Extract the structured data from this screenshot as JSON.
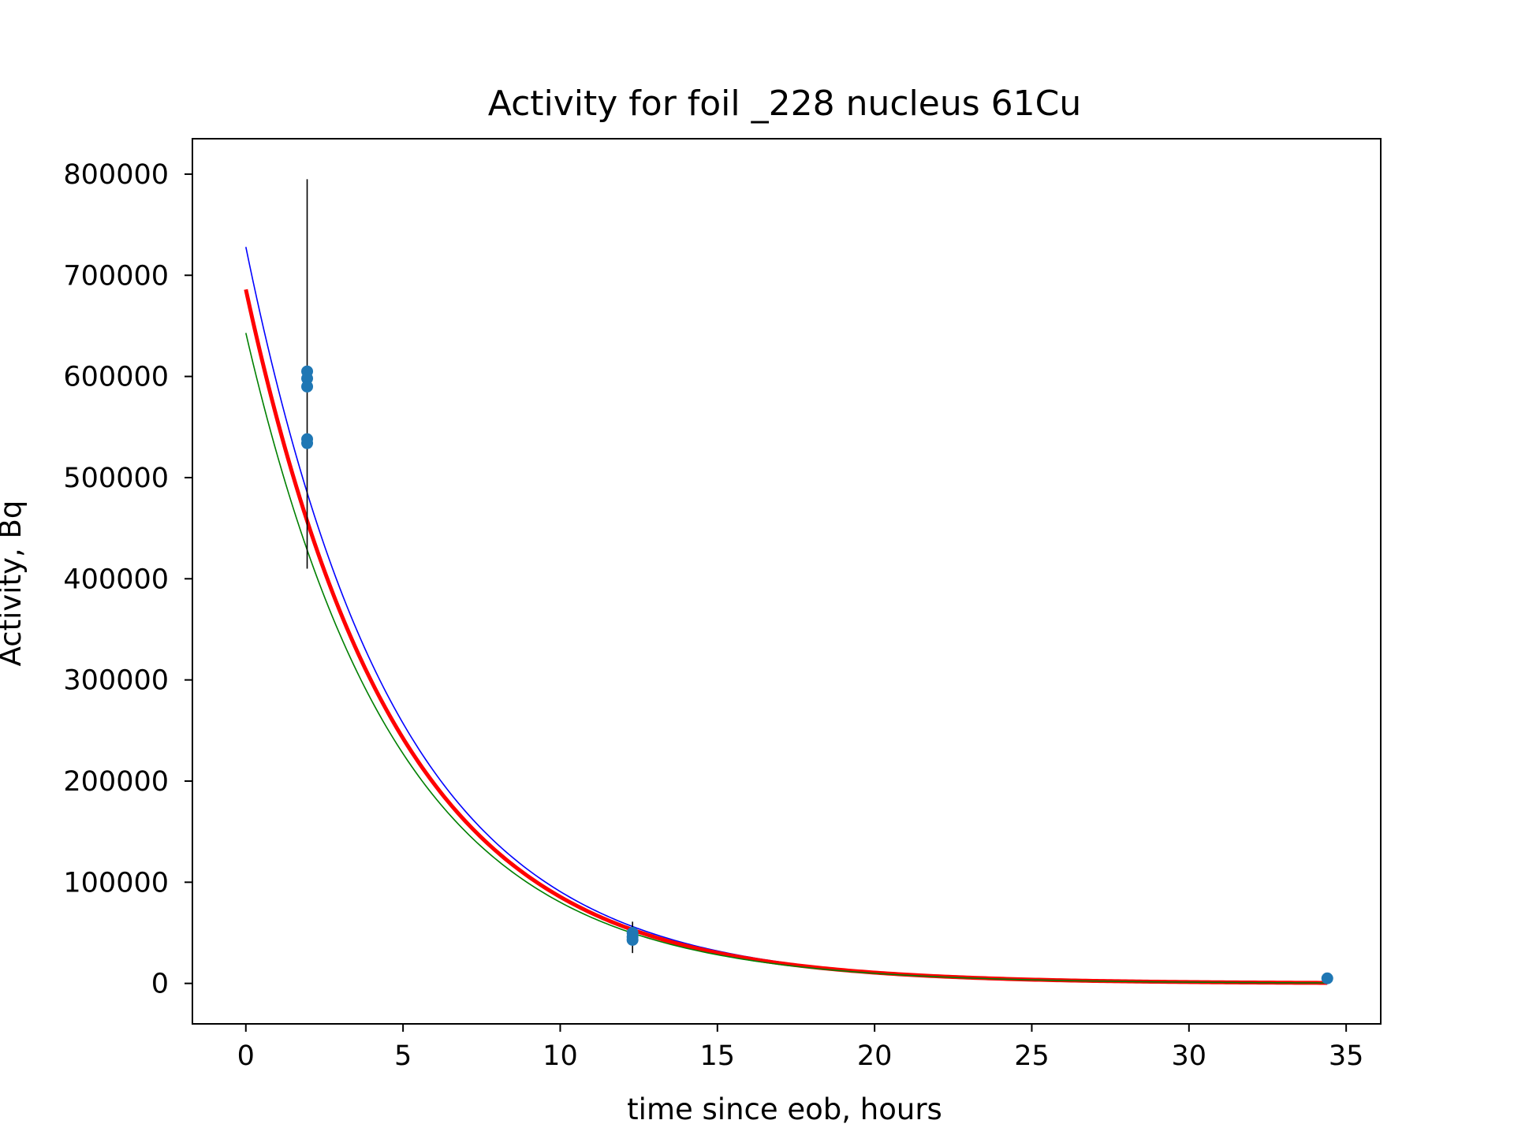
{
  "chart_data": {
    "type": "scatter",
    "title": "Activity for foil _228 nucleus 61Cu",
    "xlabel": "time since eob, hours",
    "ylabel": "Activity, Bq",
    "xlim": [
      -1.7,
      36.1
    ],
    "ylim": [
      -40000,
      835000
    ],
    "x_ticks": [
      0,
      5,
      10,
      15,
      20,
      25,
      30,
      35
    ],
    "y_ticks": [
      0,
      100000,
      200000,
      300000,
      400000,
      500000,
      600000,
      700000,
      800000
    ],
    "x_tick_labels": [
      "0",
      "5",
      "10",
      "15",
      "20",
      "25",
      "30",
      "35"
    ],
    "y_tick_labels": [
      "0",
      "100000",
      "200000",
      "300000",
      "400000",
      "500000",
      "600000",
      "700000",
      "800000"
    ],
    "grid": false,
    "legend": "none",
    "points": [
      {
        "x": 1.95,
        "y": 605000
      },
      {
        "x": 1.95,
        "y": 598000
      },
      {
        "x": 1.95,
        "y": 590000
      },
      {
        "x": 1.95,
        "y": 538000
      },
      {
        "x": 1.95,
        "y": 534000
      },
      {
        "x": 12.3,
        "y": 50000
      },
      {
        "x": 12.3,
        "y": 46000
      },
      {
        "x": 12.3,
        "y": 43000
      },
      {
        "x": 34.4,
        "y": 5000
      }
    ],
    "error_bars": [
      {
        "x": 1.95,
        "y_low": 410000,
        "y_high": 795000
      },
      {
        "x": 12.3,
        "y_low": 30000,
        "y_high": 61000
      }
    ],
    "fit_curves": [
      {
        "role": "upper",
        "color": "#0000ff",
        "A0": 728000,
        "x_start": 0,
        "x_end": 34.4
      },
      {
        "role": "fit",
        "color": "#ff0000",
        "A0": 686000,
        "x_start": 0,
        "x_end": 34.4
      },
      {
        "role": "lower",
        "color": "#008000",
        "A0": 643000,
        "x_start": 0,
        "x_end": 34.4
      }
    ],
    "half_life_hours": 3.33,
    "marker_color": "#1f77b4",
    "errorbar_color": "#000000"
  }
}
